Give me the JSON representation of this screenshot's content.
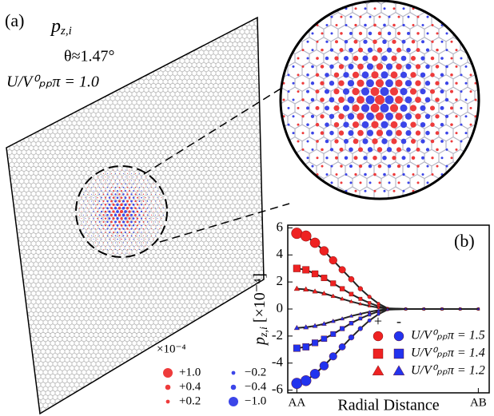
{
  "panel_a": {
    "label": "(a)",
    "symbol": "p",
    "symbol_sub": "z,i",
    "angle": "θ≈1.47°",
    "coupling": "U/V⁰ₚₚπ = 1.0",
    "scale": "×10⁻⁴",
    "legend": [
      {
        "value": 1.0,
        "label": "+1.0"
      },
      {
        "value": 0.4,
        "label": "+0.4"
      },
      {
        "value": 0.2,
        "label": "+0.2"
      },
      {
        "value": -0.2,
        "label": "−0.2"
      },
      {
        "value": -0.4,
        "label": "−0.4"
      },
      {
        "value": -1.0,
        "label": "−1.0"
      }
    ],
    "positive_color": "#ee3b3b",
    "negative_color": "#3b45e8"
  },
  "chart_data": {
    "type": "scatter",
    "label": "(b)",
    "xlabel": "Radial Distance",
    "ylabel": {
      "symbol": "p",
      "sub": "z,i",
      "rest": " [×10⁻⁴]"
    },
    "xlim": [
      -0.05,
      1.06
    ],
    "xticks": [
      {
        "value": 0,
        "label": "AA"
      },
      {
        "value": 1,
        "label": "AB"
      }
    ],
    "ylim": [
      -6.2,
      6.2
    ],
    "yticks": [
      -6,
      -4,
      -2,
      0,
      2,
      4,
      6
    ],
    "legend_headers": [
      "+",
      "-"
    ],
    "positive_color": "#ee2222",
    "negative_color": "#2233ee",
    "x": [
      0,
      0.05,
      0.1,
      0.15,
      0.2,
      0.25,
      0.3,
      0.35,
      0.4,
      0.45,
      0.5,
      0.6,
      0.7,
      0.8,
      0.9,
      1.0
    ],
    "series": [
      {
        "name": "U/V⁰ₚₚπ = 1.5",
        "marker": "circle",
        "positive": [
          5.6,
          5.4,
          4.9,
          4.3,
          3.6,
          2.9,
          2.2,
          1.5,
          0.9,
          0.4,
          0.05,
          0,
          0,
          0,
          0,
          0
        ],
        "negative": [
          -5.5,
          -5.3,
          -4.8,
          -4.2,
          -3.5,
          -2.8,
          -2.1,
          -1.45,
          -0.85,
          -0.38,
          -0.05,
          0,
          0,
          0,
          0,
          0
        ]
      },
      {
        "name": "U/V⁰ₚₚπ = 1.4",
        "marker": "square",
        "positive": [
          3.0,
          2.9,
          2.6,
          2.3,
          1.9,
          1.5,
          1.1,
          0.75,
          0.45,
          0.2,
          0.03,
          0,
          0,
          0,
          0,
          0
        ],
        "negative": [
          -2.9,
          -2.8,
          -2.5,
          -2.2,
          -1.85,
          -1.45,
          -1.05,
          -0.7,
          -0.42,
          -0.18,
          -0.03,
          0,
          0,
          0,
          0,
          0
        ]
      },
      {
        "name": "U/V⁰ₚₚπ = 1.2",
        "marker": "triangle",
        "positive": [
          1.5,
          1.45,
          1.3,
          1.15,
          0.95,
          0.75,
          0.55,
          0.38,
          0.22,
          0.1,
          0.02,
          0,
          0,
          0,
          0,
          0
        ],
        "negative": [
          -1.4,
          -1.35,
          -1.25,
          -1.1,
          -0.9,
          -0.72,
          -0.52,
          -0.36,
          -0.21,
          -0.09,
          -0.02,
          0,
          0,
          0,
          0,
          0
        ]
      }
    ]
  }
}
